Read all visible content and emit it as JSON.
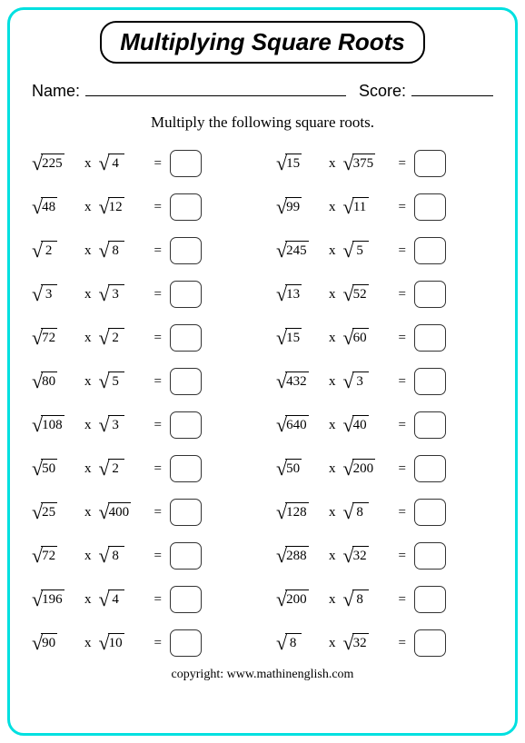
{
  "title": "Multiplying Square Roots",
  "name_label": "Name:",
  "score_label": "Score:",
  "instruction": "Multiply the following square roots.",
  "times_symbol": "x",
  "equals_symbol": "=",
  "left_column": [
    {
      "a": "225",
      "b": "4"
    },
    {
      "a": "48",
      "b": "12"
    },
    {
      "a": "2",
      "b": "8"
    },
    {
      "a": "3",
      "b": "3"
    },
    {
      "a": "72",
      "b": "2"
    },
    {
      "a": "80",
      "b": "5"
    },
    {
      "a": "108",
      "b": "3"
    },
    {
      "a": "50",
      "b": "2"
    },
    {
      "a": "25",
      "b": "400"
    },
    {
      "a": "72",
      "b": "8"
    },
    {
      "a": "196",
      "b": "4"
    },
    {
      "a": "90",
      "b": "10"
    }
  ],
  "right_column": [
    {
      "a": "15",
      "b": "375"
    },
    {
      "a": "99",
      "b": "11"
    },
    {
      "a": "245",
      "b": "5"
    },
    {
      "a": "13",
      "b": "52"
    },
    {
      "a": "15",
      "b": "60"
    },
    {
      "a": "432",
      "b": "3"
    },
    {
      "a": "640",
      "b": "40"
    },
    {
      "a": "50",
      "b": "200"
    },
    {
      "a": "128",
      "b": "8"
    },
    {
      "a": "288",
      "b": "32"
    },
    {
      "a": "200",
      "b": "8"
    },
    {
      "a": "8",
      "b": "32"
    }
  ],
  "copyright": "copyright:   www.mathinenglish.com",
  "colors": {
    "border": "#00e0e0",
    "text": "#000000",
    "background": "#ffffff"
  }
}
